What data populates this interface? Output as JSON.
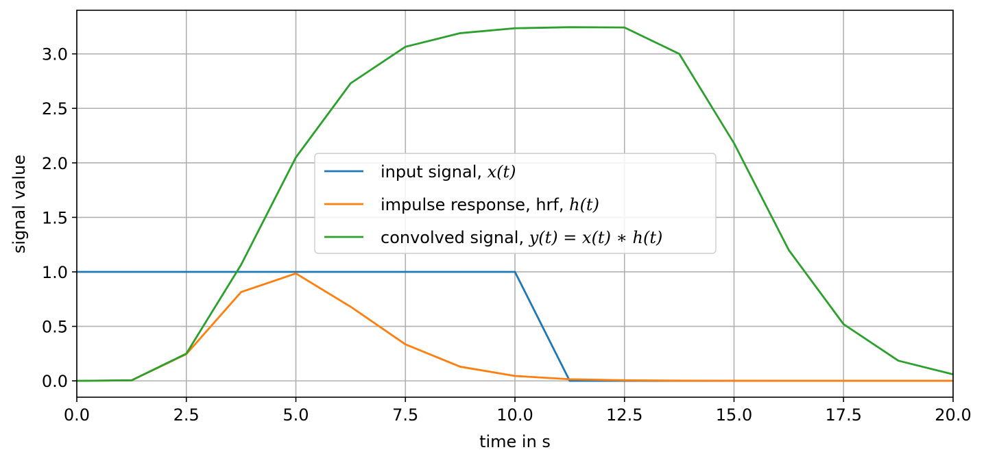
{
  "chart_data": {
    "type": "line",
    "title": "",
    "xlabel": "time in s",
    "ylabel": "signal value",
    "xlim": [
      0,
      20
    ],
    "ylim": [
      -0.15,
      3.4
    ],
    "grid": true,
    "legend_position": "center",
    "xticks": [
      0,
      2.5,
      5,
      7.5,
      10,
      12.5,
      15,
      17.5,
      20
    ],
    "xtick_labels": [
      "0.0",
      "2.5",
      "5.0",
      "7.5",
      "10.0",
      "12.5",
      "15.0",
      "17.5",
      "20.0"
    ],
    "yticks": [
      0,
      0.5,
      1,
      1.5,
      2,
      2.5,
      3
    ],
    "ytick_labels": [
      "0.0",
      "0.5",
      "1.0",
      "1.5",
      "2.0",
      "2.5",
      "3.0"
    ],
    "x": [
      0,
      1.25,
      2.5,
      3.75,
      5,
      6.25,
      7.5,
      8.75,
      10,
      11.25,
      12.5,
      13.75,
      15,
      16.25,
      17.5,
      18.75,
      20
    ],
    "series": [
      {
        "name": "input signal, x(t)",
        "legend_prefix": "input signal, ",
        "legend_math": "x(t)",
        "color": "#1f77b4",
        "values": [
          1,
          1,
          1,
          1,
          1,
          1,
          1,
          1,
          1,
          0,
          0,
          0,
          0,
          0,
          0,
          0,
          0
        ]
      },
      {
        "name": "impulse response, hrf, h(t)",
        "legend_prefix": "impulse response, hrf, ",
        "legend_math": "h(t)",
        "color": "#ff7f0e",
        "values": [
          0,
          0.005,
          0.245,
          0.815,
          0.985,
          0.68,
          0.335,
          0.13,
          0.045,
          0.015,
          0.005,
          0.002,
          0.001,
          0,
          0,
          0,
          0
        ]
      },
      {
        "name": "convolved signal, y(t) = x(t) * h(t)",
        "legend_prefix": "convolved signal, ",
        "legend_math": "y(t) = x(t) ∗ h(t)",
        "color": "#2ca02c",
        "values": [
          0,
          0.005,
          0.25,
          1.065,
          2.05,
          2.73,
          3.065,
          3.19,
          3.235,
          3.245,
          3.242,
          3.0,
          2.18,
          1.2,
          0.52,
          0.185,
          0.06
        ]
      }
    ]
  }
}
